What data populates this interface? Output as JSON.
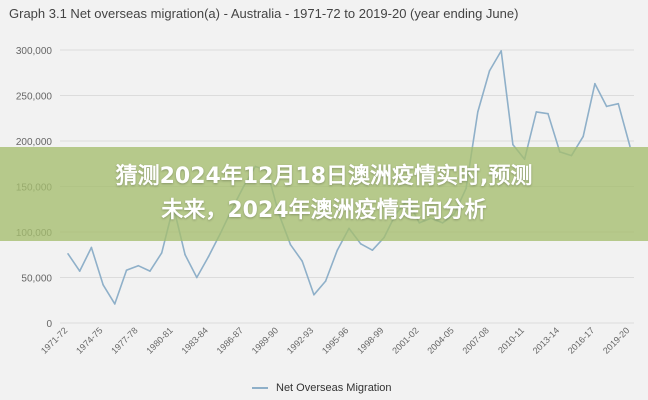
{
  "chart_data": {
    "type": "line",
    "title": "Graph 3.1 Net overseas migration(a) - Australia - 1971-72 to 2019-20 (year ending June)",
    "xlabel": "",
    "ylabel": "",
    "ylim": [
      0,
      300000
    ],
    "yticks": [
      "0",
      "50,000",
      "100,000",
      "150,000",
      "200,000",
      "250,000",
      "300,000"
    ],
    "ytick_values": [
      0,
      50000,
      100000,
      150000,
      200000,
      250000,
      300000
    ],
    "grid": true,
    "legend_position": "bottom",
    "line_color": "#8fb0c9",
    "x": [
      "1971-72",
      "1972-73",
      "1973-74",
      "1974-75",
      "1975-76",
      "1976-77",
      "1977-78",
      "1978-79",
      "1979-80",
      "1980-81",
      "1981-82",
      "1982-83",
      "1983-84",
      "1984-85",
      "1985-86",
      "1986-87",
      "1987-88",
      "1988-89",
      "1989-90",
      "1990-91",
      "1991-92",
      "1992-93",
      "1993-94",
      "1994-95",
      "1995-96",
      "1996-97",
      "1997-98",
      "1998-99",
      "1999-00",
      "2000-01",
      "2001-02",
      "2002-03",
      "2003-04",
      "2004-05",
      "2005-06",
      "2006-07",
      "2007-08",
      "2008-09",
      "2009-10",
      "2010-11",
      "2011-12",
      "2012-13",
      "2013-14",
      "2014-15",
      "2015-16",
      "2016-17",
      "2017-18",
      "2018-19",
      "2019-20"
    ],
    "xtick_labels": [
      "1971-72",
      "1974-75",
      "1977-78",
      "1980-81",
      "1983-84",
      "1986-87",
      "1989-90",
      "1992-93",
      "1995-96",
      "1998-99",
      "2001-02",
      "2004-05",
      "2007-08",
      "2010-11",
      "2013-14",
      "2016-17",
      "2019-20"
    ],
    "series": [
      {
        "name": "Net Overseas Migration",
        "values": [
          76000,
          57000,
          83000,
          42000,
          21000,
          58000,
          63000,
          57000,
          77000,
          128000,
          75000,
          50000,
          73000,
          98000,
          125000,
          150000,
          172000,
          168000,
          120000,
          86000,
          68000,
          31000,
          46000,
          80000,
          104000,
          87000,
          80000,
          94000,
          120000,
          135000,
          110000,
          115000,
          110000,
          120000,
          148000,
          232000,
          277000,
          299000,
          196000,
          180000,
          232000,
          230000,
          188000,
          184000,
          205000,
          263000,
          238000,
          241000,
          194000
        ]
      }
    ]
  },
  "banner": {
    "line1": "猜测2024年12月18日澳洲疫情实时,预测",
    "line2": "未来，2024年澳洲疫情走向分析"
  },
  "legend": {
    "label": "Net Overseas Migration"
  }
}
